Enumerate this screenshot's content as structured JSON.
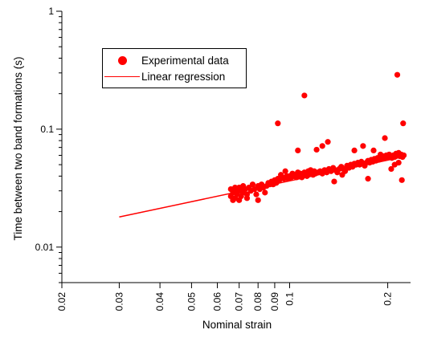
{
  "chart_data": {
    "type": "scatter",
    "title": "",
    "xlabel": "Nominal strain",
    "ylabel": "Time between two band formations (s)",
    "xscale": "log",
    "yscale": "log",
    "xlim": [
      0.02,
      0.235
    ],
    "ylim": [
      0.005,
      1
    ],
    "x_ticks": [
      "0.02",
      "0.03",
      "0.04",
      "0.05",
      "0.06",
      "0.07",
      "0.08",
      "0.09",
      "0.1",
      "0.2"
    ],
    "y_ticks": [
      "1",
      "0.1",
      "0.01"
    ],
    "legend_position": "top-left",
    "grid": false,
    "colors": {
      "series": "#ff0000",
      "axes": "#000000"
    },
    "series": [
      {
        "name": "Experimental data",
        "kind": "scatter",
        "marker": "filled-circle",
        "points": [
          [
            0.066,
            0.031
          ],
          [
            0.066,
            0.027
          ],
          [
            0.067,
            0.025
          ],
          [
            0.067,
            0.029
          ],
          [
            0.068,
            0.032
          ],
          [
            0.068,
            0.026
          ],
          [
            0.069,
            0.03
          ],
          [
            0.069,
            0.028
          ],
          [
            0.07,
            0.025
          ],
          [
            0.07,
            0.032
          ],
          [
            0.071,
            0.03
          ],
          [
            0.071,
            0.027
          ],
          [
            0.072,
            0.033
          ],
          [
            0.072,
            0.029
          ],
          [
            0.073,
            0.031
          ],
          [
            0.074,
            0.028
          ],
          [
            0.074,
            0.026
          ],
          [
            0.075,
            0.032
          ],
          [
            0.076,
            0.03
          ],
          [
            0.077,
            0.034
          ],
          [
            0.078,
            0.031
          ],
          [
            0.079,
            0.028
          ],
          [
            0.08,
            0.025
          ],
          [
            0.08,
            0.033
          ],
          [
            0.081,
            0.031
          ],
          [
            0.082,
            0.034
          ],
          [
            0.083,
            0.032
          ],
          [
            0.084,
            0.029
          ],
          [
            0.085,
            0.033
          ],
          [
            0.086,
            0.035
          ],
          [
            0.087,
            0.034
          ],
          [
            0.088,
            0.036
          ],
          [
            0.089,
            0.034
          ],
          [
            0.09,
            0.037
          ],
          [
            0.091,
            0.035
          ],
          [
            0.092,
            0.038
          ],
          [
            0.093,
            0.037
          ],
          [
            0.094,
            0.041
          ],
          [
            0.095,
            0.039
          ],
          [
            0.096,
            0.038
          ],
          [
            0.097,
            0.044
          ],
          [
            0.098,
            0.04
          ],
          [
            0.099,
            0.038
          ],
          [
            0.1,
            0.04
          ],
          [
            0.101,
            0.039
          ],
          [
            0.102,
            0.042
          ],
          [
            0.103,
            0.04
          ],
          [
            0.104,
            0.041
          ],
          [
            0.105,
            0.039
          ],
          [
            0.106,
            0.043
          ],
          [
            0.107,
            0.04
          ],
          [
            0.108,
            0.042
          ],
          [
            0.109,
            0.039
          ],
          [
            0.11,
            0.041
          ],
          [
            0.111,
            0.043
          ],
          [
            0.112,
            0.042
          ],
          [
            0.113,
            0.04
          ],
          [
            0.114,
            0.044
          ],
          [
            0.115,
            0.042
          ],
          [
            0.116,
            0.045
          ],
          [
            0.117,
            0.043
          ],
          [
            0.118,
            0.041
          ],
          [
            0.119,
            0.044
          ],
          [
            0.12,
            0.042
          ],
          [
            0.122,
            0.043
          ],
          [
            0.124,
            0.044
          ],
          [
            0.126,
            0.042
          ],
          [
            0.128,
            0.045
          ],
          [
            0.13,
            0.043
          ],
          [
            0.132,
            0.046
          ],
          [
            0.134,
            0.044
          ],
          [
            0.136,
            0.047
          ],
          [
            0.138,
            0.045
          ],
          [
            0.14,
            0.043
          ],
          [
            0.142,
            0.046
          ],
          [
            0.144,
            0.048
          ],
          [
            0.146,
            0.046
          ],
          [
            0.148,
            0.044
          ],
          [
            0.15,
            0.049
          ],
          [
            0.152,
            0.047
          ],
          [
            0.154,
            0.05
          ],
          [
            0.156,
            0.048
          ],
          [
            0.158,
            0.051
          ],
          [
            0.16,
            0.05
          ],
          [
            0.162,
            0.052
          ],
          [
            0.164,
            0.05
          ],
          [
            0.166,
            0.053
          ],
          [
            0.168,
            0.051
          ],
          [
            0.17,
            0.049
          ],
          [
            0.172,
            0.052
          ],
          [
            0.174,
            0.054
          ],
          [
            0.176,
            0.052
          ],
          [
            0.178,
            0.055
          ],
          [
            0.18,
            0.053
          ],
          [
            0.182,
            0.056
          ],
          [
            0.184,
            0.054
          ],
          [
            0.186,
            0.057
          ],
          [
            0.188,
            0.055
          ],
          [
            0.19,
            0.058
          ],
          [
            0.192,
            0.056
          ],
          [
            0.194,
            0.059
          ],
          [
            0.196,
            0.057
          ],
          [
            0.198,
            0.06
          ],
          [
            0.2,
            0.058
          ],
          [
            0.202,
            0.061
          ],
          [
            0.204,
            0.059
          ],
          [
            0.206,
            0.057
          ],
          [
            0.208,
            0.06
          ],
          [
            0.21,
            0.058
          ],
          [
            0.212,
            0.062
          ],
          [
            0.214,
            0.06
          ],
          [
            0.216,
            0.063
          ],
          [
            0.218,
            0.059
          ],
          [
            0.22,
            0.061
          ],
          [
            0.222,
            0.058
          ],
          [
            0.224,
            0.06
          ],
          [
            0.092,
            0.112
          ],
          [
            0.106,
            0.066
          ],
          [
            0.111,
            0.193
          ],
          [
            0.121,
            0.067
          ],
          [
            0.126,
            0.072
          ],
          [
            0.131,
            0.078
          ],
          [
            0.137,
            0.036
          ],
          [
            0.145,
            0.041
          ],
          [
            0.168,
            0.072
          ],
          [
            0.174,
            0.038
          ],
          [
            0.181,
            0.066
          ],
          [
            0.196,
            0.084
          ],
          [
            0.205,
            0.046
          ],
          [
            0.214,
            0.289
          ],
          [
            0.221,
            0.037
          ],
          [
            0.223,
            0.112
          ],
          [
            0.21,
            0.05
          ],
          [
            0.19,
            0.061
          ],
          [
            0.158,
            0.066
          ],
          [
            0.216,
            0.052
          ]
        ]
      },
      {
        "name": "Linear regression",
        "kind": "line",
        "points": [
          [
            0.03,
            0.018
          ],
          [
            0.215,
            0.057
          ]
        ]
      }
    ]
  }
}
